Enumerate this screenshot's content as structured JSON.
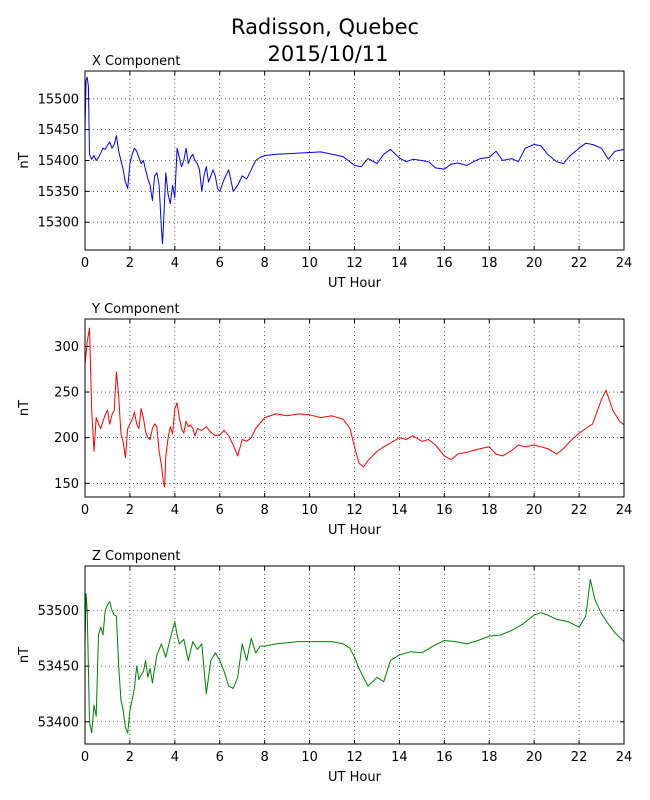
{
  "figure": {
    "title_line1": "Radisson, Quebec",
    "title_line2": "2015/10/11"
  },
  "chart_data": [
    {
      "type": "line",
      "title": "X Component",
      "xlabel": "UT Hour",
      "ylabel": "nT",
      "xlim": [
        0,
        24
      ],
      "ylim": [
        15255,
        15545
      ],
      "xticks": [
        0,
        2,
        4,
        6,
        8,
        10,
        12,
        14,
        16,
        18,
        20,
        22,
        24
      ],
      "yticks": [
        15300,
        15350,
        15400,
        15450,
        15500
      ],
      "grid": true,
      "series": [
        {
          "color": "#0000ff",
          "x": [
            0,
            0.05,
            0.1,
            0.15,
            0.2,
            0.3,
            0.4,
            0.5,
            0.6,
            0.7,
            0.8,
            0.9,
            1.0,
            1.1,
            1.2,
            1.3,
            1.4,
            1.5,
            1.6,
            1.7,
            1.8,
            1.9,
            2.0,
            2.1,
            2.2,
            2.3,
            2.4,
            2.5,
            2.6,
            2.7,
            2.8,
            2.9,
            3.0,
            3.1,
            3.2,
            3.3,
            3.4,
            3.45,
            3.5,
            3.6,
            3.7,
            3.8,
            3.9,
            4.0,
            4.1,
            4.2,
            4.3,
            4.4,
            4.5,
            4.6,
            4.7,
            4.8,
            4.9,
            5.0,
            5.1,
            5.2,
            5.3,
            5.4,
            5.5,
            5.6,
            5.7,
            5.8,
            5.9,
            6.0,
            6.2,
            6.4,
            6.6,
            6.8,
            7.0,
            7.2,
            7.4,
            7.6,
            7.8,
            8.0,
            8.5,
            9.0,
            9.5,
            10.0,
            10.5,
            11.0,
            11.5,
            12.0,
            12.3,
            12.6,
            13.0,
            13.3,
            13.6,
            14.0,
            14.3,
            14.6,
            15.0,
            15.3,
            15.6,
            16.0,
            16.3,
            16.6,
            17.0,
            17.3,
            17.6,
            18.0,
            18.3,
            18.6,
            19.0,
            19.3,
            19.6,
            20.0,
            20.3,
            20.6,
            21.0,
            21.3,
            21.6,
            22.0,
            22.3,
            22.6,
            23.0,
            23.3,
            23.6,
            24.0
          ],
          "values": [
            15450,
            15530,
            15535,
            15520,
            15410,
            15402,
            15408,
            15400,
            15405,
            15412,
            15420,
            15418,
            15425,
            15430,
            15420,
            15426,
            15440,
            15415,
            15400,
            15385,
            15365,
            15355,
            15395,
            15410,
            15420,
            15415,
            15405,
            15395,
            15400,
            15385,
            15370,
            15360,
            15335,
            15375,
            15380,
            15360,
            15290,
            15265,
            15300,
            15380,
            15345,
            15330,
            15360,
            15340,
            15420,
            15405,
            15390,
            15400,
            15420,
            15395,
            15405,
            15410,
            15400,
            15395,
            15385,
            15350,
            15375,
            15390,
            15365,
            15375,
            15385,
            15375,
            15355,
            15350,
            15370,
            15385,
            15350,
            15360,
            15375,
            15370,
            15385,
            15400,
            15405,
            15408,
            15410,
            15411,
            15412,
            15413,
            15414,
            15410,
            15406,
            15392,
            15390,
            15403,
            15395,
            15410,
            15418,
            15404,
            15398,
            15402,
            15400,
            15398,
            15388,
            15386,
            15394,
            15396,
            15392,
            15398,
            15403,
            15405,
            15415,
            15400,
            15403,
            15398,
            15420,
            15426,
            15424,
            15410,
            15398,
            15395,
            15408,
            15420,
            15428,
            15426,
            15420,
            15402,
            15415,
            15418
          ]
        }
      ]
    },
    {
      "type": "line",
      "title": "Y Component",
      "xlabel": "UT Hour",
      "ylabel": "nT",
      "xlim": [
        0,
        24
      ],
      "ylim": [
        135,
        330
      ],
      "xticks": [
        0,
        2,
        4,
        6,
        8,
        10,
        12,
        14,
        16,
        18,
        20,
        22,
        24
      ],
      "yticks": [
        150,
        200,
        250,
        300
      ],
      "grid": true,
      "series": [
        {
          "color": "#ff0000",
          "x": [
            0,
            0.1,
            0.2,
            0.3,
            0.4,
            0.5,
            0.6,
            0.7,
            0.8,
            0.9,
            1.0,
            1.1,
            1.2,
            1.3,
            1.4,
            1.5,
            1.6,
            1.7,
            1.8,
            1.9,
            2.0,
            2.1,
            2.2,
            2.3,
            2.4,
            2.5,
            2.6,
            2.7,
            2.8,
            2.9,
            3.0,
            3.1,
            3.2,
            3.3,
            3.4,
            3.5,
            3.55,
            3.6,
            3.7,
            3.8,
            3.9,
            4.0,
            4.1,
            4.2,
            4.3,
            4.4,
            4.5,
            4.6,
            4.7,
            4.8,
            4.9,
            5.0,
            5.2,
            5.4,
            5.6,
            5.8,
            6.0,
            6.2,
            6.4,
            6.6,
            6.8,
            7.0,
            7.2,
            7.4,
            7.6,
            7.8,
            8.0,
            8.5,
            9.0,
            9.5,
            10.0,
            10.5,
            11.0,
            11.5,
            11.8,
            12.0,
            12.2,
            12.4,
            12.6,
            13.0,
            13.3,
            13.6,
            14.0,
            14.3,
            14.6,
            15.0,
            15.3,
            15.6,
            16.0,
            16.3,
            16.6,
            17.0,
            17.3,
            17.6,
            18.0,
            18.3,
            18.6,
            19.0,
            19.3,
            19.6,
            20.0,
            20.3,
            20.6,
            21.0,
            21.3,
            21.6,
            22.0,
            22.3,
            22.6,
            23.0,
            23.2,
            23.5,
            23.8,
            24.0
          ],
          "values": [
            280,
            305,
            320,
            230,
            185,
            222,
            215,
            210,
            218,
            225,
            230,
            215,
            225,
            230,
            272,
            245,
            205,
            195,
            178,
            210,
            215,
            220,
            228,
            215,
            210,
            232,
            222,
            206,
            200,
            198,
            210,
            215,
            212,
            185,
            170,
            150,
            146,
            180,
            200,
            212,
            204,
            232,
            238,
            222,
            210,
            205,
            218,
            212,
            214,
            210,
            202,
            210,
            208,
            212,
            206,
            202,
            203,
            208,
            202,
            192,
            180,
            198,
            196,
            200,
            210,
            216,
            222,
            226,
            224,
            226,
            225,
            222,
            224,
            220,
            210,
            190,
            172,
            168,
            175,
            185,
            190,
            194,
            200,
            198,
            202,
            196,
            198,
            192,
            180,
            176,
            182,
            184,
            186,
            188,
            190,
            182,
            180,
            186,
            192,
            190,
            192,
            190,
            188,
            182,
            188,
            196,
            205,
            210,
            215,
            242,
            252,
            230,
            218,
            214
          ]
        }
      ]
    },
    {
      "type": "line",
      "title": "Z Component",
      "xlabel": "UT Hour",
      "ylabel": "nT",
      "xlim": [
        0,
        24
      ],
      "ylim": [
        53380,
        53540
      ],
      "xticks": [
        0,
        2,
        4,
        6,
        8,
        10,
        12,
        14,
        16,
        18,
        20,
        22,
        24
      ],
      "yticks": [
        53400,
        53450,
        53500
      ],
      "grid": true,
      "series": [
        {
          "color": "#008000",
          "x": [
            0,
            0.05,
            0.1,
            0.2,
            0.3,
            0.4,
            0.5,
            0.6,
            0.7,
            0.8,
            0.9,
            1.0,
            1.1,
            1.2,
            1.3,
            1.4,
            1.5,
            1.6,
            1.7,
            1.8,
            1.9,
            2.0,
            2.1,
            2.2,
            2.3,
            2.4,
            2.5,
            2.6,
            2.7,
            2.8,
            2.9,
            3.0,
            3.2,
            3.4,
            3.6,
            3.8,
            4.0,
            4.1,
            4.2,
            4.4,
            4.6,
            4.8,
            5.0,
            5.2,
            5.4,
            5.6,
            5.8,
            6.0,
            6.2,
            6.4,
            6.6,
            6.8,
            7.0,
            7.2,
            7.4,
            7.6,
            7.8,
            8.0,
            8.5,
            9.0,
            9.5,
            10.0,
            10.5,
            11.0,
            11.5,
            11.8,
            12.0,
            12.2,
            12.4,
            12.6,
            13.0,
            13.3,
            13.6,
            14.0,
            14.5,
            15.0,
            15.5,
            16.0,
            16.5,
            17.0,
            17.5,
            18.0,
            18.5,
            19.0,
            19.5,
            20.0,
            20.3,
            20.6,
            21.0,
            21.5,
            22.0,
            22.3,
            22.5,
            22.7,
            23.0,
            23.3,
            23.6,
            24.0
          ],
          "values": [
            53470,
            53515,
            53500,
            53400,
            53390,
            53415,
            53405,
            53478,
            53485,
            53478,
            53500,
            53505,
            53508,
            53500,
            53496,
            53495,
            53450,
            53420,
            53410,
            53395,
            53390,
            53410,
            53420,
            53430,
            53450,
            53438,
            53442,
            53445,
            53455,
            53440,
            53448,
            53435,
            53460,
            53470,
            53458,
            53475,
            53490,
            53478,
            53470,
            53474,
            53455,
            53472,
            53465,
            53470,
            53425,
            53455,
            53462,
            53455,
            53445,
            53432,
            53430,
            53440,
            53470,
            53455,
            53475,
            53462,
            53468,
            53468,
            53470,
            53471,
            53472,
            53472,
            53472,
            53472,
            53470,
            53466,
            53458,
            53448,
            53440,
            53432,
            53440,
            53436,
            53455,
            53460,
            53463,
            53462,
            53468,
            53473,
            53472,
            53470,
            53473,
            53477,
            53478,
            53482,
            53488,
            53496,
            53498,
            53496,
            53492,
            53490,
            53485,
            53495,
            53528,
            53510,
            53497,
            53488,
            53480,
            53472
          ]
        }
      ]
    }
  ]
}
